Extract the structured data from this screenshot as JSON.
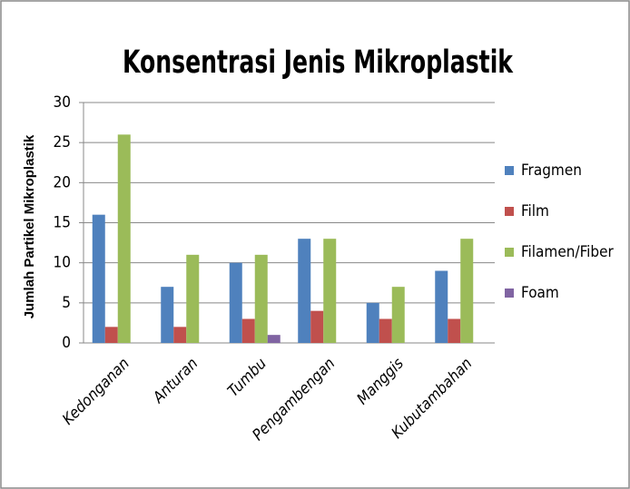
{
  "chart_data": {
    "type": "bar",
    "title": "Konsentrasi Jenis Mikroplastik",
    "y_label": "Jumlah Partikel Mikroplastik",
    "categories": [
      "Kedonganan",
      "Anturan",
      "Tumbu",
      "Pengambengan",
      "Manggis",
      "Kubutambahan"
    ],
    "series": [
      {
        "name": "Fragmen",
        "color": "#4f81bd",
        "values": [
          16,
          7,
          10,
          13,
          5,
          9
        ]
      },
      {
        "name": "Film",
        "color": "#c0504d",
        "values": [
          2,
          2,
          3,
          4,
          3,
          3
        ]
      },
      {
        "name": "Filamen/Fiber",
        "color": "#9bbb59",
        "values": [
          26,
          11,
          11,
          13,
          7,
          13
        ]
      },
      {
        "name": "Foam",
        "color": "#8064a2",
        "values": [
          0,
          0,
          1,
          0,
          0,
          0
        ]
      }
    ],
    "ylim": [
      0,
      30
    ],
    "yticks": [
      0,
      5,
      10,
      15,
      20,
      25,
      30
    ],
    "grid": true,
    "legend": "right"
  }
}
